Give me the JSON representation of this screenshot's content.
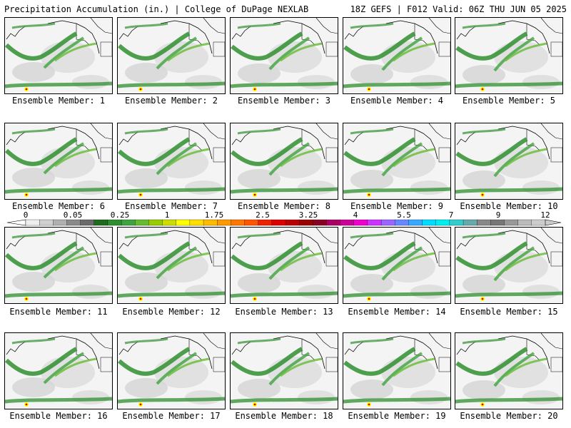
{
  "header": {
    "title": "Precipitation Accumulation (in.) | College of DuPage NEXLAB",
    "run_info": "18Z GEFS | F012 Valid: 06Z THU JUN 05 2025"
  },
  "panels": [
    {
      "label": "Ensemble Member: 1"
    },
    {
      "label": "Ensemble Member: 2"
    },
    {
      "label": "Ensemble Member: 3"
    },
    {
      "label": "Ensemble Member: 4"
    },
    {
      "label": "Ensemble Member: 5"
    },
    {
      "label": "Ensemble Member: 6"
    },
    {
      "label": "Ensemble Member: 7"
    },
    {
      "label": "Ensemble Member: 8"
    },
    {
      "label": "Ensemble Member: 9"
    },
    {
      "label": "Ensemble Member: 10"
    },
    {
      "label": "Ensemble Member: 11"
    },
    {
      "label": "Ensemble Member: 12"
    },
    {
      "label": "Ensemble Member: 13"
    },
    {
      "label": "Ensemble Member: 14"
    },
    {
      "label": "Ensemble Member: 15"
    },
    {
      "label": "Ensemble Member: 16"
    },
    {
      "label": "Ensemble Member: 17"
    },
    {
      "label": "Ensemble Member: 18"
    },
    {
      "label": "Ensemble Member: 19"
    },
    {
      "label": "Ensemble Member: 20"
    }
  ],
  "colorbar": {
    "labels": [
      "0",
      "0.05",
      "0.25",
      "1",
      "1.75",
      "2.5",
      "3.25",
      "4",
      "5.5",
      "7",
      "9",
      "12"
    ],
    "colors": [
      "#eeeeee",
      "#d0d0d0",
      "#b0b0b0",
      "#8a8a8a",
      "#6a6a6a",
      "#1e6b1e",
      "#2f8f2f",
      "#3fa33f",
      "#66bb33",
      "#99cc00",
      "#ccdd00",
      "#ffff00",
      "#ffdd00",
      "#ffbb00",
      "#ff9900",
      "#ff7700",
      "#ff5500",
      "#ee2200",
      "#dd0000",
      "#bb0000",
      "#990000",
      "#880022",
      "#aa0066",
      "#cc0099",
      "#ee00cc",
      "#cc33ff",
      "#9966ff",
      "#6688ff",
      "#33aaff",
      "#00ddff",
      "#00eeee",
      "#33cccc",
      "#66aaaa",
      "#888888",
      "#777777",
      "#999999",
      "#bbbbbb",
      "#cccccc"
    ]
  }
}
